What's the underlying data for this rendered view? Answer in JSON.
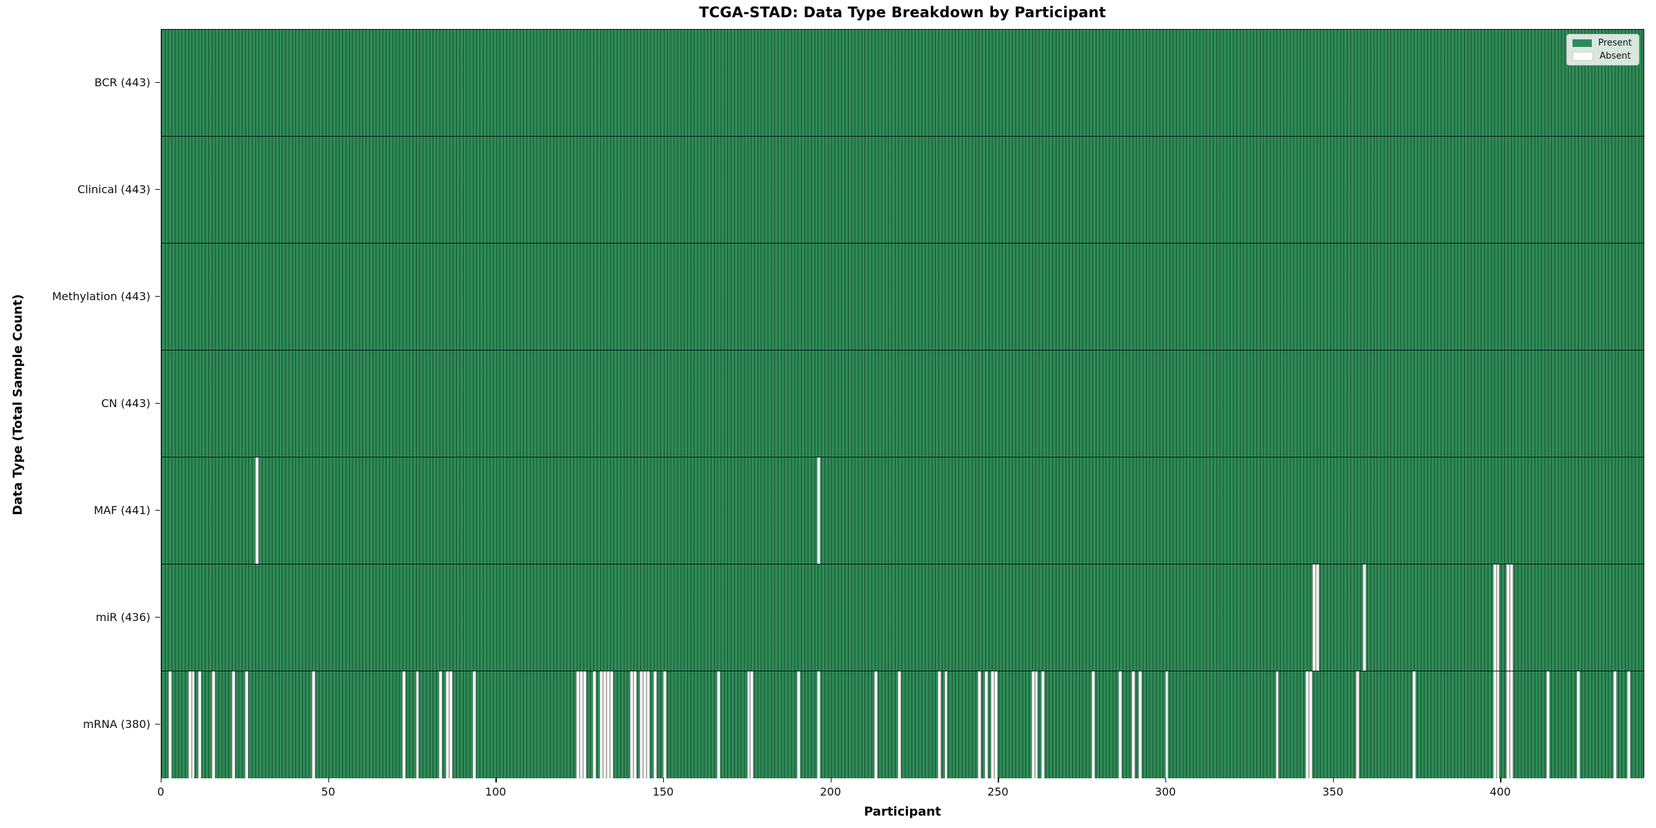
{
  "colors": {
    "present": "#2e8b57",
    "absent": "#ffffff",
    "bar_edge": "rgba(8,30,18,0.55)",
    "axis": "#111111"
  },
  "chart_data": {
    "type": "heatmap",
    "title": "TCGA-STAD: Data Type Breakdown by Participant",
    "xlabel": "Participant",
    "ylabel": "Data Type (Total Sample Count)",
    "n_participants": 443,
    "x_ticks": [
      0,
      50,
      100,
      150,
      200,
      250,
      300,
      350,
      400
    ],
    "xlim": [
      0,
      443
    ],
    "grid": false,
    "legend_position": "upper right",
    "legend": [
      {
        "label": "Present",
        "color": "#2e8b57"
      },
      {
        "label": "Absent",
        "color": "#ffffff"
      }
    ],
    "rows": [
      {
        "label": "BCR (443)",
        "name": "BCR",
        "total": 443,
        "absent": []
      },
      {
        "label": "Clinical (443)",
        "name": "Clinical",
        "total": 443,
        "absent": []
      },
      {
        "label": "Methylation (443)",
        "name": "Methylation",
        "total": 443,
        "absent": []
      },
      {
        "label": "CN (443)",
        "name": "CN",
        "total": 443,
        "absent": []
      },
      {
        "label": "MAF (441)",
        "name": "MAF",
        "total": 441,
        "absent": [
          28,
          196
        ]
      },
      {
        "label": "miR (436)",
        "name": "miR",
        "total": 436,
        "absent": [
          344,
          345,
          359,
          398,
          399,
          402,
          403
        ]
      },
      {
        "label": "mRNA (380)",
        "name": "mRNA",
        "total": 380,
        "absent": [
          2,
          8,
          9,
          11,
          15,
          21,
          25,
          45,
          72,
          76,
          83,
          85,
          86,
          93,
          124,
          125,
          126,
          129,
          131,
          132,
          133,
          134,
          140,
          141,
          143,
          144,
          145,
          147,
          150,
          166,
          175,
          176,
          190,
          196,
          213,
          220,
          232,
          234,
          244,
          246,
          248,
          249,
          260,
          261,
          263,
          278,
          286,
          290,
          292,
          300,
          333,
          342,
          343,
          357,
          374,
          398,
          399,
          402,
          403,
          414,
          423,
          434,
          438
        ]
      }
    ]
  }
}
